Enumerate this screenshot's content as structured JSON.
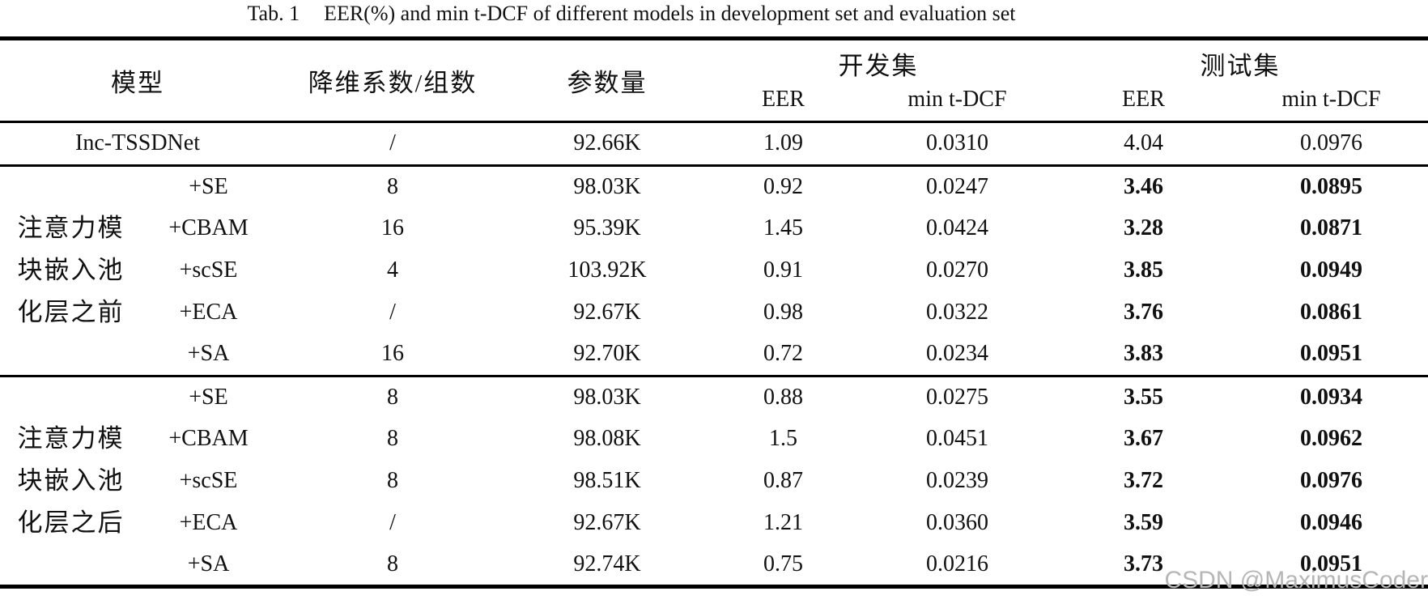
{
  "caption": {
    "tab_no": "Tab. 1",
    "text": "EER(%) and min t-DCF of different models in development set and evaluation set"
  },
  "watermark": "CSDN @MaximusCoder",
  "colors": {
    "rule_black": "#000000",
    "sub_rule_gray": "#7f7f7f",
    "watermark_gray": "#b6b6b6",
    "text": "#111111"
  },
  "table": {
    "headers": {
      "model": "模型",
      "reduction": "降维系数/组数",
      "params": "参数量",
      "dev_set": "开发集",
      "test_set": "测试集",
      "eer": "EER",
      "min_tdcf": "min t-DCF"
    },
    "sections": [
      {
        "group_label_lines": [],
        "rows": [
          {
            "model": "Inc-TSSDNet",
            "reduction": "/",
            "params": "92.66K",
            "dev_eer": "1.09",
            "dev_tdcf": "0.0310",
            "test_eer": "4.04",
            "test_tdcf": "0.0976",
            "bold_test": false
          }
        ]
      },
      {
        "group_label_lines": [
          "注意力模",
          "块嵌入池",
          "化层之前"
        ],
        "rows": [
          {
            "model": "+SE",
            "reduction": "8",
            "params": "98.03K",
            "dev_eer": "0.92",
            "dev_tdcf": "0.0247",
            "test_eer": "3.46",
            "test_tdcf": "0.0895",
            "bold_test": true
          },
          {
            "model": "+CBAM",
            "reduction": "16",
            "params": "95.39K",
            "dev_eer": "1.45",
            "dev_tdcf": "0.0424",
            "test_eer": "3.28",
            "test_tdcf": "0.0871",
            "bold_test": true
          },
          {
            "model": "+scSE",
            "reduction": "4",
            "params": "103.92K",
            "dev_eer": "0.91",
            "dev_tdcf": "0.0270",
            "test_eer": "3.85",
            "test_tdcf": "0.0949",
            "bold_test": true
          },
          {
            "model": "+ECA",
            "reduction": "/",
            "params": "92.67K",
            "dev_eer": "0.98",
            "dev_tdcf": "0.0322",
            "test_eer": "3.76",
            "test_tdcf": "0.0861",
            "bold_test": true
          },
          {
            "model": "+SA",
            "reduction": "16",
            "params": "92.70K",
            "dev_eer": "0.72",
            "dev_tdcf": "0.0234",
            "test_eer": "3.83",
            "test_tdcf": "0.0951",
            "bold_test": true
          }
        ]
      },
      {
        "group_label_lines": [
          "注意力模",
          "块嵌入池",
          "化层之后"
        ],
        "rows": [
          {
            "model": "+SE",
            "reduction": "8",
            "params": "98.03K",
            "dev_eer": "0.88",
            "dev_tdcf": "0.0275",
            "test_eer": "3.55",
            "test_tdcf": "0.0934",
            "bold_test": true
          },
          {
            "model": "+CBAM",
            "reduction": "8",
            "params": "98.08K",
            "dev_eer": "1.5",
            "dev_tdcf": "0.0451",
            "test_eer": "3.67",
            "test_tdcf": "0.0962",
            "bold_test": true
          },
          {
            "model": "+scSE",
            "reduction": "8",
            "params": "98.51K",
            "dev_eer": "0.87",
            "dev_tdcf": "0.0239",
            "test_eer": "3.72",
            "test_tdcf": "0.0976",
            "bold_test": true
          },
          {
            "model": "+ECA",
            "reduction": "/",
            "params": "92.67K",
            "dev_eer": "1.21",
            "dev_tdcf": "0.0360",
            "test_eer": "3.59",
            "test_tdcf": "0.0946",
            "bold_test": true
          },
          {
            "model": "+SA",
            "reduction": "8",
            "params": "92.74K",
            "dev_eer": "0.75",
            "dev_tdcf": "0.0216",
            "test_eer": "3.73",
            "test_tdcf": "0.0951",
            "bold_test": true
          }
        ]
      }
    ]
  }
}
